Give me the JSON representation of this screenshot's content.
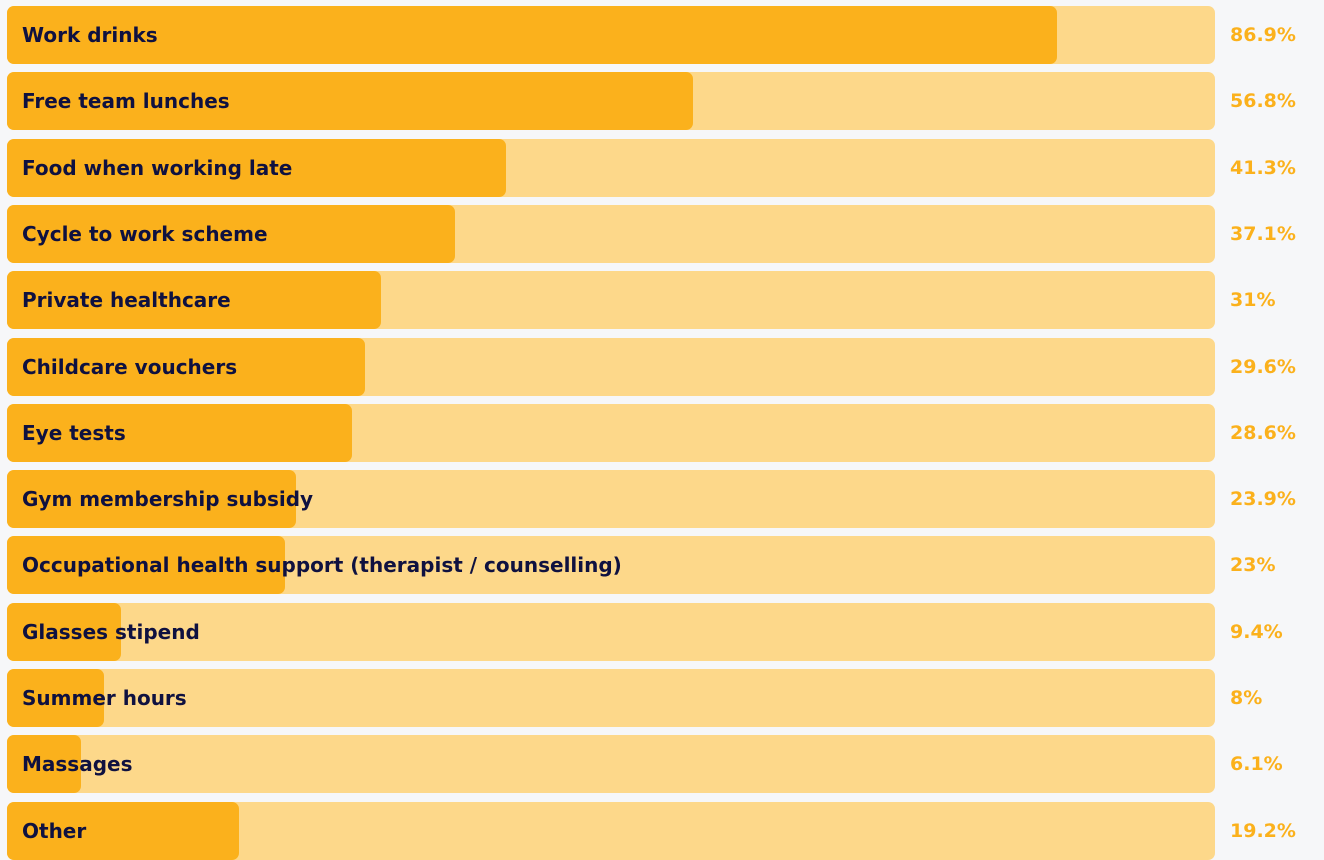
{
  "colors": {
    "fill": "#fbb11c",
    "track": "#fdd88a",
    "label_text": "#0f1140",
    "value_text": "#fbb11c",
    "background": "#f6f7f9"
  },
  "chart_data": {
    "type": "bar",
    "orientation": "horizontal",
    "unit": "%",
    "xlim": [
      0,
      100
    ],
    "grid": false,
    "legend": "none",
    "categories": [
      "Work drinks",
      "Free team lunches",
      "Food when working late",
      "Cycle to work scheme",
      "Private healthcare",
      "Childcare vouchers",
      "Eye tests",
      "Gym membership subsidy",
      "Occupational health support (therapist / counselling)",
      "Glasses stipend",
      "Summer hours",
      "Massages",
      "Other"
    ],
    "values": [
      86.9,
      56.8,
      41.3,
      37.1,
      31,
      29.6,
      28.6,
      23.9,
      23,
      9.4,
      8,
      6.1,
      19.2
    ],
    "value_labels": [
      "86.9%",
      "56.8%",
      "41.3%",
      "37.1%",
      "31%",
      "29.6%",
      "28.6%",
      "23.9%",
      "23%",
      "9.4%",
      "8%",
      "6.1%",
      "19.2%"
    ]
  }
}
